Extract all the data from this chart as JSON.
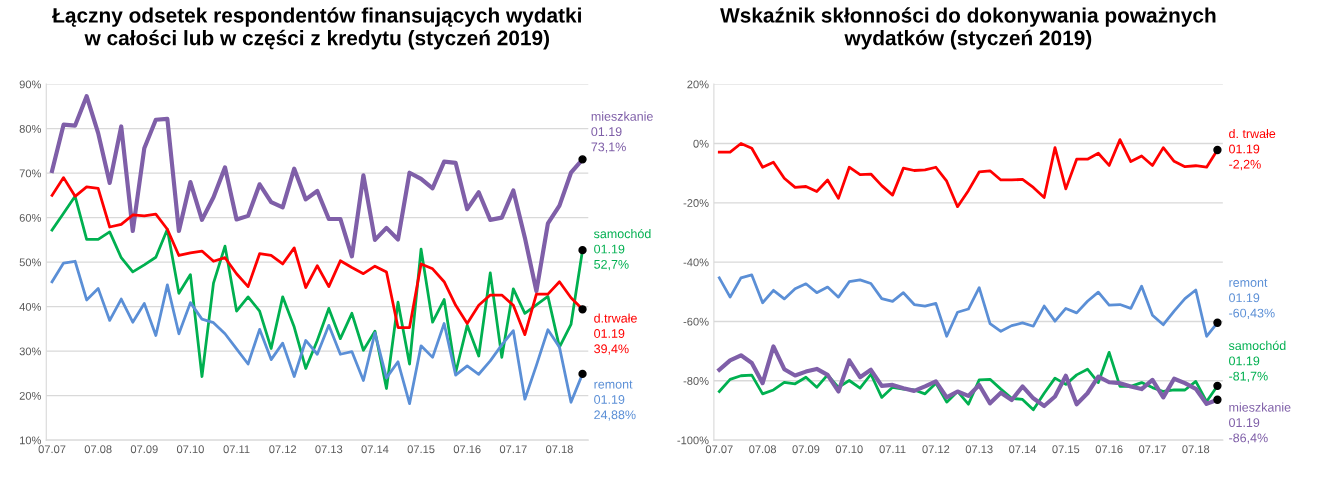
{
  "chart_data": [
    {
      "type": "line",
      "title": "Łączny odsetek respondentów finansujących wydatki\nw całości lub w części z kredytu (styczeń 2019)",
      "categories": [
        "07.07",
        null,
        null,
        null,
        "07.08",
        null,
        null,
        null,
        "07.09",
        null,
        null,
        null,
        "07.10",
        null,
        null,
        null,
        "07.11",
        null,
        null,
        null,
        "07.12",
        null,
        null,
        null,
        "07.13",
        null,
        null,
        null,
        "07.14",
        null,
        null,
        null,
        "07.15",
        null,
        null,
        null,
        "07.16",
        null,
        null,
        null,
        "07.17",
        null,
        null,
        null,
        "07.18",
        null,
        null
      ],
      "ylim": [
        10,
        90
      ],
      "yticks": [
        {
          "value": 10,
          "label": "10%"
        },
        {
          "value": 20,
          "label": "20%"
        },
        {
          "value": 30,
          "label": "30%"
        },
        {
          "value": 40,
          "label": "40%"
        },
        {
          "value": 50,
          "label": "50%"
        },
        {
          "value": 60,
          "label": "60%"
        },
        {
          "value": 70,
          "label": "70%"
        },
        {
          "value": 80,
          "label": "80%"
        },
        {
          "value": 90,
          "label": "90%"
        }
      ],
      "grid": "y",
      "legend": false,
      "series": [
        {
          "name": "mieszkanie",
          "color": "#7f5fa8",
          "values": [
            70.5,
            80.9,
            80.7,
            87.3,
            79,
            67.8,
            80.5,
            57,
            75.6,
            82,
            82.2,
            57,
            68,
            59.5,
            64.6,
            71.3,
            59.6,
            60.4,
            67.5,
            63.5,
            62.3,
            71,
            64.1,
            66,
            59.7,
            59.7,
            51.3,
            69.5,
            55,
            57.7,
            55.1,
            70.1,
            68.7,
            66.6,
            72.6,
            72.3,
            61.9,
            65.7,
            59.5,
            60,
            66.1,
            55.5,
            43.5,
            58.7,
            62.7,
            70.1,
            73.1
          ],
          "value_labels": [
            null,
            null,
            null,
            null,
            null,
            null,
            null,
            null,
            null,
            null,
            null,
            null,
            null,
            null,
            null,
            null,
            null,
            null,
            null,
            null,
            null,
            null,
            null,
            null,
            null,
            null,
            null,
            null,
            null,
            null,
            null,
            null,
            null,
            null,
            null,
            null,
            null,
            null,
            null,
            null,
            null,
            null,
            null,
            null,
            null,
            null,
            "01.19\n73,1%"
          ]
        },
        {
          "name": "samochód",
          "color": "#00b050",
          "values": [
            57.2,
            61,
            64.8,
            55.1,
            55.1,
            56.8,
            51,
            47.8,
            49.4,
            51.1,
            57.4,
            43,
            47.2,
            24.3,
            45.3,
            53.6,
            39,
            42.2,
            39,
            30.6,
            42.2,
            35.4,
            26.1,
            32.4,
            39.6,
            32.8,
            38.5,
            30.2,
            34.5,
            21.6,
            41,
            27.1,
            52.9,
            36.5,
            41.6,
            25.2,
            35.8,
            28.9,
            47.6,
            28.6,
            44,
            38.5,
            40.4,
            42.3,
            30.9,
            36,
            52.7
          ],
          "value_labels": [
            null,
            null,
            null,
            null,
            null,
            null,
            null,
            null,
            null,
            null,
            null,
            null,
            null,
            null,
            null,
            null,
            null,
            null,
            null,
            null,
            null,
            null,
            null,
            null,
            null,
            null,
            null,
            null,
            null,
            null,
            null,
            null,
            null,
            null,
            null,
            null,
            null,
            null,
            null,
            null,
            null,
            null,
            null,
            null,
            null,
            null,
            "01.19\n52,7%"
          ]
        },
        {
          "name": "d.trwałe",
          "color": "#ff0000",
          "values": [
            65,
            69,
            64.8,
            66.9,
            66.6,
            57.9,
            58.5,
            60.6,
            60.4,
            60.8,
            57.4,
            51.5,
            52.1,
            52.5,
            50.2,
            51,
            47.4,
            44.5,
            51.9,
            51.5,
            49.6,
            53.2,
            44.3,
            49.2,
            44.5,
            50.3,
            48.8,
            47.4,
            49.1,
            47.8,
            35.3,
            35.3,
            49.6,
            48.5,
            45.6,
            40.3,
            36.2,
            40.3,
            42.6,
            42.6,
            40.3,
            33.7,
            42.8,
            42.8,
            45.6,
            42,
            39.4
          ],
          "value_labels": [
            null,
            null,
            null,
            null,
            null,
            null,
            null,
            null,
            null,
            null,
            null,
            null,
            null,
            null,
            null,
            null,
            null,
            null,
            null,
            null,
            null,
            null,
            null,
            null,
            null,
            null,
            null,
            null,
            null,
            null,
            null,
            null,
            null,
            null,
            null,
            null,
            null,
            null,
            null,
            null,
            null,
            null,
            null,
            null,
            null,
            null,
            "01.19\n39,4%"
          ]
        },
        {
          "name": "remont",
          "color": "#5b8fd6",
          "values": [
            45.6,
            49.8,
            50.2,
            41.5,
            44.1,
            36.9,
            41.7,
            36.5,
            40.7,
            33.5,
            44.9,
            33.9,
            40.9,
            37.2,
            36.4,
            33.9,
            30.5,
            27.1,
            34.9,
            28.1,
            31.8,
            24.3,
            32.4,
            29.3,
            35.8,
            29.3,
            29.9,
            23.4,
            34.1,
            24,
            27.6,
            18.2,
            31.2,
            28.6,
            36.2,
            24.6,
            26.7,
            24.8,
            27.8,
            31.4,
            34.6,
            19.2,
            26.8,
            34.8,
            30.9,
            18.5,
            24.88
          ],
          "value_labels": [
            null,
            null,
            null,
            null,
            null,
            null,
            null,
            null,
            null,
            null,
            null,
            null,
            null,
            null,
            null,
            null,
            null,
            null,
            null,
            null,
            null,
            null,
            null,
            null,
            null,
            null,
            null,
            null,
            null,
            null,
            null,
            null,
            null,
            null,
            null,
            null,
            null,
            null,
            null,
            null,
            null,
            null,
            null,
            null,
            null,
            null,
            "01.19\n24,88%"
          ]
        }
      ]
    },
    {
      "type": "line",
      "title": "Wskaźnik skłonności do dokonywania poważnych\nwydatków (styczeń 2019)",
      "categories": [
        "07.07",
        null,
        null,
        null,
        "07.08",
        null,
        null,
        null,
        "07.09",
        null,
        null,
        null,
        "07.10",
        null,
        null,
        null,
        "07.11",
        null,
        null,
        null,
        "07.12",
        null,
        null,
        null,
        "07.13",
        null,
        null,
        null,
        "07.14",
        null,
        null,
        null,
        "07.15",
        null,
        null,
        null,
        "07.16",
        null,
        null,
        null,
        "07.17",
        null,
        null,
        null,
        "07.18",
        null,
        null
      ],
      "ylim": [
        -100,
        20
      ],
      "yticks": [
        {
          "value": -100,
          "label": "-100%"
        },
        {
          "value": -80,
          "label": "-80%"
        },
        {
          "value": -60,
          "label": "-60%"
        },
        {
          "value": -40,
          "label": "-40%"
        },
        {
          "value": -20,
          "label": "-20%"
        },
        {
          "value": 0,
          "label": "0%"
        },
        {
          "value": 20,
          "label": "20%"
        }
      ],
      "grid": "y",
      "legend": false,
      "series": [
        {
          "name": "d. trwałe",
          "color": "#ff0000",
          "values": [
            -2.9,
            -2.9,
            0,
            -1.6,
            -8,
            -6.3,
            -11.7,
            -14.8,
            -14.5,
            -16.2,
            -12.3,
            -18.5,
            -8,
            -10.5,
            -10.3,
            -14.2,
            -17.4,
            -8.3,
            -9.1,
            -8.9,
            -8,
            -12.7,
            -21.3,
            -15.9,
            -9.6,
            -9.2,
            -12.3,
            -12.3,
            -12.1,
            -14.8,
            -18.2,
            -1.4,
            -15.3,
            -5.3,
            -5.3,
            -3.3,
            -7.4,
            1.3,
            -6.1,
            -4.2,
            -7.4,
            -1.4,
            -6,
            -7.8,
            -7.5,
            -8,
            -2.2
          ],
          "value_labels": [
            null,
            null,
            null,
            null,
            null,
            null,
            null,
            null,
            null,
            null,
            null,
            null,
            null,
            null,
            null,
            null,
            null,
            null,
            null,
            null,
            null,
            null,
            null,
            null,
            null,
            null,
            null,
            null,
            null,
            null,
            null,
            null,
            null,
            null,
            null,
            null,
            null,
            null,
            null,
            null,
            null,
            null,
            null,
            null,
            null,
            null,
            "01.19\n-2,2%"
          ]
        },
        {
          "name": "remont",
          "color": "#5b8fd6",
          "values": [
            -45.3,
            -51.8,
            -45.3,
            -44.3,
            -53.7,
            -49.5,
            -52.4,
            -49,
            -47.3,
            -50.3,
            -48.4,
            -51.8,
            -46.6,
            -46,
            -47.2,
            -52.3,
            -53.2,
            -50.3,
            -54.3,
            -54.8,
            -53.9,
            -65,
            -56.9,
            -55.8,
            -48.6,
            -60.7,
            -63.3,
            -61.4,
            -60.5,
            -61.6,
            -54.8,
            -59.9,
            -55.6,
            -57.1,
            -53.2,
            -50.1,
            -54.5,
            -54.3,
            -55.6,
            -48.1,
            -57.9,
            -61.1,
            -56.5,
            -52.3,
            -49.4,
            -65,
            -60.43
          ],
          "value_labels": [
            null,
            null,
            null,
            null,
            null,
            null,
            null,
            null,
            null,
            null,
            null,
            null,
            null,
            null,
            null,
            null,
            null,
            null,
            null,
            null,
            null,
            null,
            null,
            null,
            null,
            null,
            null,
            null,
            null,
            null,
            null,
            null,
            null,
            null,
            null,
            null,
            null,
            null,
            null,
            null,
            null,
            null,
            null,
            null,
            null,
            null,
            "01.19\n-60,43%"
          ]
        },
        {
          "name": "samochód",
          "color": "#00b050",
          "values": [
            -83.6,
            -79.5,
            -78.3,
            -78.1,
            -84.4,
            -83.1,
            -80.5,
            -81,
            -78.8,
            -82.2,
            -78,
            -82.2,
            -79.9,
            -82.5,
            -77.8,
            -85.6,
            -82.2,
            -82.8,
            -83.1,
            -84.4,
            -80.8,
            -87.2,
            -83.6,
            -87.9,
            -79.7,
            -79.5,
            -82.8,
            -85.9,
            -86.3,
            -89.8,
            -84.2,
            -79.1,
            -81.2,
            -78,
            -76.1,
            -80.6,
            -70.4,
            -81.9,
            -81.9,
            -80.6,
            -82.3,
            -83.6,
            -83.1,
            -83.1,
            -80.2,
            -87,
            -81.7
          ],
          "value_labels": [
            null,
            null,
            null,
            null,
            null,
            null,
            null,
            null,
            null,
            null,
            null,
            null,
            null,
            null,
            null,
            null,
            null,
            null,
            null,
            null,
            null,
            null,
            null,
            null,
            null,
            null,
            null,
            null,
            null,
            null,
            null,
            null,
            null,
            null,
            null,
            null,
            null,
            null,
            null,
            null,
            null,
            null,
            null,
            null,
            null,
            null,
            "01.19\n-81,7%"
          ]
        },
        {
          "name": "mieszkanie",
          "color": "#7f5fa8",
          "values": [
            -76.3,
            -73.1,
            -71.4,
            -74,
            -80.8,
            -68.4,
            -76.1,
            -78.2,
            -76.9,
            -76,
            -78,
            -83.6,
            -73.1,
            -78.8,
            -76.3,
            -81.7,
            -81.4,
            -82.5,
            -83.4,
            -81.9,
            -80.2,
            -85.6,
            -83.6,
            -85.1,
            -81.4,
            -87.6,
            -84,
            -86.5,
            -81.9,
            -85.9,
            -88.5,
            -85.3,
            -78.3,
            -87.9,
            -84.2,
            -78.6,
            -80.5,
            -80.8,
            -81.9,
            -82.8,
            -79.7,
            -85.6,
            -79.3,
            -80.8,
            -82.7,
            -87.8,
            -86.4
          ],
          "value_labels": [
            null,
            null,
            null,
            null,
            null,
            null,
            null,
            null,
            null,
            null,
            null,
            null,
            null,
            null,
            null,
            null,
            null,
            null,
            null,
            null,
            null,
            null,
            null,
            null,
            null,
            null,
            null,
            null,
            null,
            null,
            null,
            null,
            null,
            null,
            null,
            null,
            null,
            null,
            null,
            null,
            null,
            null,
            null,
            null,
            null,
            null,
            "01.19\n-86,4%"
          ]
        }
      ]
    }
  ]
}
